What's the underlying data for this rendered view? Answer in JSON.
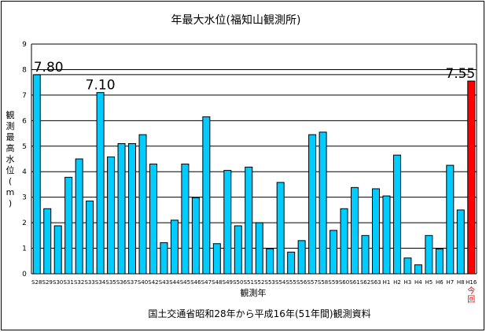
{
  "chart_data": {
    "type": "bar",
    "title": "年最大水位(福知山観測所)",
    "ylabel": "観測最高水位(m)",
    "xlabel": "観測年",
    "caption": "国土交通省昭和28年から平成16年(51年間)観測資料",
    "ylim": [
      0,
      9
    ],
    "yticks": [
      "0",
      "1",
      "2",
      "3",
      "4",
      "5",
      "6",
      "7",
      "8",
      "9"
    ],
    "categories": [
      "S28",
      "S29",
      "S30",
      "S31",
      "S32",
      "S33",
      "S34",
      "S35",
      "S36",
      "S37",
      "S40",
      "S42",
      "S43",
      "S44",
      "S45",
      "S46",
      "S47",
      "S48",
      "S49",
      "S50",
      "S51",
      "S52",
      "S53",
      "S54",
      "S55",
      "S56",
      "S57",
      "S58",
      "S59",
      "S60",
      "S61",
      "S62",
      "S63",
      "H1",
      "H2",
      "H3",
      "H4",
      "H5",
      "H6",
      "H7",
      "H8",
      "H16"
    ],
    "values": [
      7.8,
      2.55,
      1.88,
      3.78,
      4.5,
      2.85,
      7.1,
      4.58,
      5.1,
      5.1,
      5.45,
      4.3,
      1.22,
      2.1,
      4.3,
      2.98,
      6.15,
      1.18,
      4.05,
      1.88,
      4.18,
      2.0,
      0.98,
      3.58,
      0.85,
      1.3,
      5.45,
      5.55,
      1.7,
      2.55,
      3.38,
      1.5,
      3.33,
      3.05,
      4.65,
      0.62,
      0.35,
      1.5,
      0.97,
      4.25,
      2.5,
      7.55
    ],
    "colors": {
      "normal": "#00ccff",
      "current": "#ff0000",
      "stroke": "#000000"
    },
    "current_label": "今回",
    "annotations": [
      {
        "label": "7.80",
        "category": "S28"
      },
      {
        "label": "7.10",
        "category": "S34"
      },
      {
        "label": "7.55",
        "category": "H16"
      }
    ],
    "reference_line": {
      "value": 7.8
    }
  }
}
